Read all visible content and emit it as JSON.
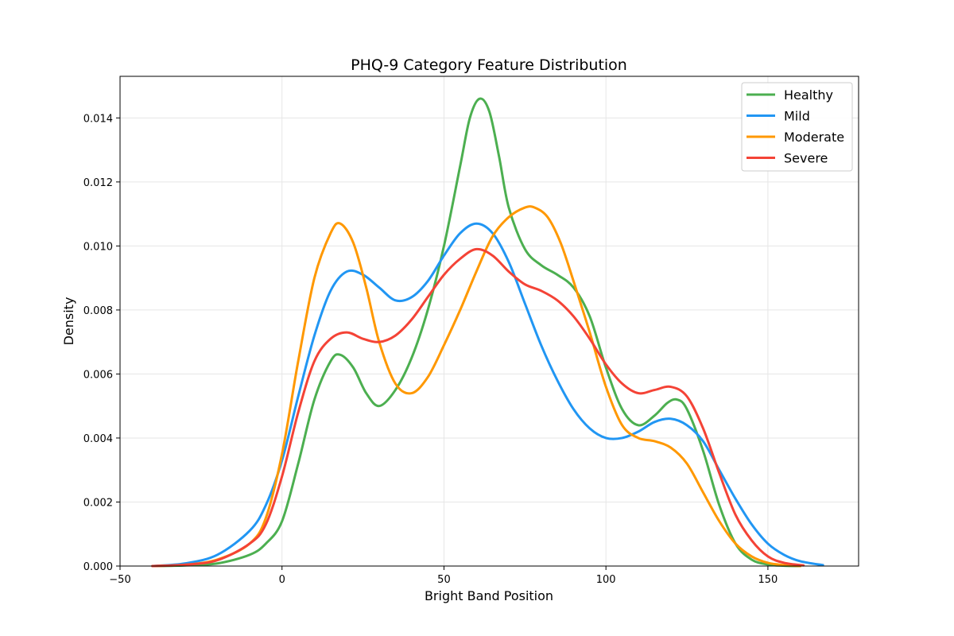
{
  "chart_data": {
    "type": "line",
    "title": "PHQ-9 Category Feature Distribution",
    "xlabel": "Bright Band Position",
    "ylabel": "Density",
    "xlim": [
      -50,
      178
    ],
    "ylim": [
      0,
      0.0153
    ],
    "xticks": [
      -50,
      0,
      50,
      100,
      150
    ],
    "xtick_labels": [
      "−50",
      "0",
      "50",
      "100",
      "150"
    ],
    "yticks": [
      0,
      0.002,
      0.004,
      0.006,
      0.008,
      0.01,
      0.012,
      0.014
    ],
    "ytick_labels": [
      "0.000",
      "0.002",
      "0.004",
      "0.006",
      "0.008",
      "0.010",
      "0.012",
      "0.014"
    ],
    "grid": true,
    "legend_position": "top-right",
    "series": [
      {
        "name": "Healthy",
        "color": "#4caf50",
        "points": [
          [
            -40,
            0
          ],
          [
            -30,
            2e-05
          ],
          [
            -20,
            8e-05
          ],
          [
            -10,
            0.00035
          ],
          [
            -5,
            0.0007
          ],
          [
            0,
            0.0014
          ],
          [
            5,
            0.0032
          ],
          [
            10,
            0.0052
          ],
          [
            15,
            0.0064
          ],
          [
            18,
            0.0066
          ],
          [
            22,
            0.0062
          ],
          [
            26,
            0.0054
          ],
          [
            30,
            0.005
          ],
          [
            35,
            0.0055
          ],
          [
            40,
            0.0065
          ],
          [
            45,
            0.008
          ],
          [
            50,
            0.01
          ],
          [
            55,
            0.0125
          ],
          [
            58,
            0.014
          ],
          [
            61,
            0.0146
          ],
          [
            64,
            0.0142
          ],
          [
            67,
            0.0128
          ],
          [
            70,
            0.0112
          ],
          [
            75,
            0.0099
          ],
          [
            80,
            0.0094
          ],
          [
            85,
            0.0091
          ],
          [
            90,
            0.0087
          ],
          [
            95,
            0.0078
          ],
          [
            100,
            0.0062
          ],
          [
            105,
            0.0049
          ],
          [
            110,
            0.0044
          ],
          [
            115,
            0.0047
          ],
          [
            119,
            0.0051
          ],
          [
            122,
            0.0052
          ],
          [
            125,
            0.0049
          ],
          [
            130,
            0.0036
          ],
          [
            135,
            0.0019
          ],
          [
            140,
            0.0007
          ],
          [
            145,
            0.0002
          ],
          [
            150,
            5e-05
          ],
          [
            155,
            1e-05
          ],
          [
            160,
            0
          ]
        ]
      },
      {
        "name": "Mild",
        "color": "#2196f3",
        "points": [
          [
            -40,
            0
          ],
          [
            -30,
            8e-05
          ],
          [
            -20,
            0.00035
          ],
          [
            -10,
            0.0011
          ],
          [
            -5,
            0.0019
          ],
          [
            0,
            0.0033
          ],
          [
            5,
            0.0053
          ],
          [
            10,
            0.0072
          ],
          [
            15,
            0.0086
          ],
          [
            20,
            0.0092
          ],
          [
            25,
            0.0091
          ],
          [
            30,
            0.0087
          ],
          [
            35,
            0.0083
          ],
          [
            40,
            0.0084
          ],
          [
            45,
            0.0089
          ],
          [
            50,
            0.0097
          ],
          [
            55,
            0.0104
          ],
          [
            60,
            0.0107
          ],
          [
            65,
            0.0104
          ],
          [
            70,
            0.0095
          ],
          [
            75,
            0.0082
          ],
          [
            80,
            0.0069
          ],
          [
            85,
            0.0058
          ],
          [
            90,
            0.0049
          ],
          [
            95,
            0.0043
          ],
          [
            100,
            0.004
          ],
          [
            105,
            0.004
          ],
          [
            110,
            0.0042
          ],
          [
            115,
            0.0045
          ],
          [
            120,
            0.0046
          ],
          [
            125,
            0.0044
          ],
          [
            130,
            0.0039
          ],
          [
            135,
            0.003
          ],
          [
            140,
            0.0021
          ],
          [
            145,
            0.0013
          ],
          [
            150,
            0.0007
          ],
          [
            155,
            0.00035
          ],
          [
            160,
            0.00015
          ],
          [
            167,
            3e-05
          ]
        ]
      },
      {
        "name": "Moderate",
        "color": "#ff9800",
        "points": [
          [
            -40,
            0
          ],
          [
            -30,
            4e-05
          ],
          [
            -20,
            0.0002
          ],
          [
            -10,
            0.0007
          ],
          [
            -5,
            0.0015
          ],
          [
            0,
            0.0035
          ],
          [
            5,
            0.0064
          ],
          [
            10,
            0.009
          ],
          [
            15,
            0.0104
          ],
          [
            18,
            0.0107
          ],
          [
            22,
            0.0101
          ],
          [
            26,
            0.0087
          ],
          [
            30,
            0.007
          ],
          [
            35,
            0.0057
          ],
          [
            40,
            0.0054
          ],
          [
            45,
            0.0059
          ],
          [
            50,
            0.0069
          ],
          [
            55,
            0.008
          ],
          [
            60,
            0.0092
          ],
          [
            65,
            0.0103
          ],
          [
            70,
            0.0109
          ],
          [
            75,
            0.0112
          ],
          [
            78,
            0.0112
          ],
          [
            82,
            0.0109
          ],
          [
            86,
            0.0101
          ],
          [
            90,
            0.0089
          ],
          [
            95,
            0.0073
          ],
          [
            100,
            0.0056
          ],
          [
            105,
            0.0044
          ],
          [
            110,
            0.004
          ],
          [
            115,
            0.0039
          ],
          [
            120,
            0.0037
          ],
          [
            125,
            0.0032
          ],
          [
            130,
            0.0023
          ],
          [
            135,
            0.0014
          ],
          [
            140,
            0.0007
          ],
          [
            145,
            0.0003
          ],
          [
            150,
            0.0001
          ],
          [
            155,
            3e-05
          ],
          [
            160,
            0
          ]
        ]
      },
      {
        "name": "Severe",
        "color": "#f44336",
        "points": [
          [
            -40,
            0
          ],
          [
            -30,
            4e-05
          ],
          [
            -20,
            0.00018
          ],
          [
            -10,
            0.0007
          ],
          [
            -5,
            0.0013
          ],
          [
            0,
            0.0028
          ],
          [
            5,
            0.0048
          ],
          [
            10,
            0.0064
          ],
          [
            15,
            0.0071
          ],
          [
            20,
            0.0073
          ],
          [
            25,
            0.0071
          ],
          [
            30,
            0.007
          ],
          [
            35,
            0.0072
          ],
          [
            40,
            0.0077
          ],
          [
            45,
            0.0084
          ],
          [
            50,
            0.0091
          ],
          [
            55,
            0.0096
          ],
          [
            60,
            0.0099
          ],
          [
            65,
            0.0097
          ],
          [
            70,
            0.0092
          ],
          [
            75,
            0.0088
          ],
          [
            80,
            0.0086
          ],
          [
            85,
            0.0083
          ],
          [
            90,
            0.0078
          ],
          [
            95,
            0.0071
          ],
          [
            100,
            0.0063
          ],
          [
            105,
            0.0057
          ],
          [
            110,
            0.0054
          ],
          [
            115,
            0.0055
          ],
          [
            120,
            0.0056
          ],
          [
            125,
            0.0053
          ],
          [
            130,
            0.0043
          ],
          [
            135,
            0.0029
          ],
          [
            140,
            0.0016
          ],
          [
            145,
            0.0008
          ],
          [
            150,
            0.0003
          ],
          [
            155,
            0.0001
          ],
          [
            161,
            2e-05
          ]
        ]
      }
    ]
  }
}
